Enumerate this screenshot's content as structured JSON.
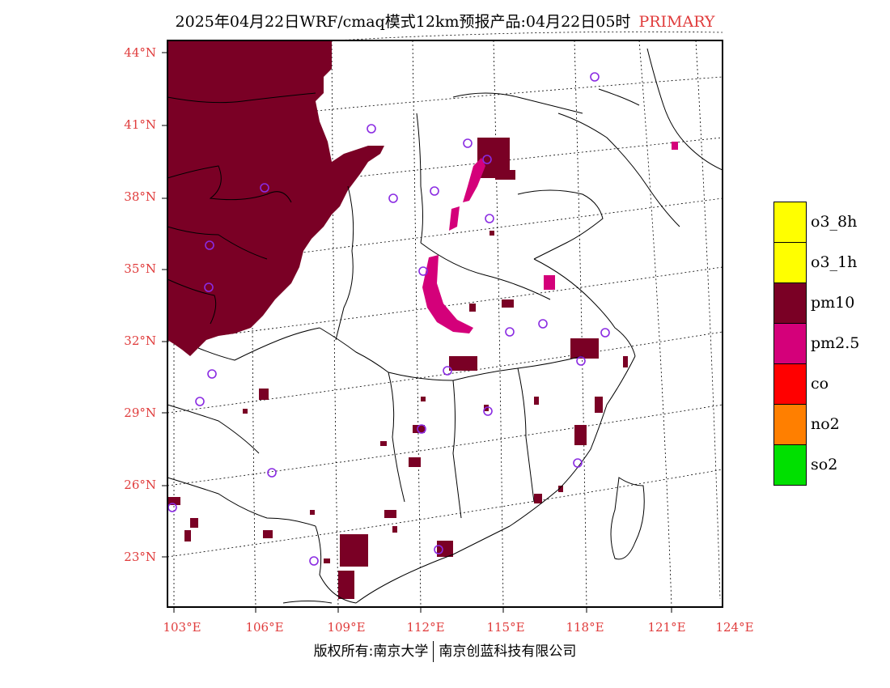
{
  "title": {
    "main": "2025年04月22日WRF/cmaq模式12km预报产品:04月22日05时",
    "tag": "PRIMARY"
  },
  "axes": {
    "lat_labels": [
      "44°N",
      "41°N",
      "38°N",
      "35°N",
      "32°N",
      "29°N",
      "26°N",
      "23°N"
    ],
    "lon_labels": [
      "103°E",
      "106°E",
      "109°E",
      "112°E",
      "115°E",
      "118°E",
      "121°E",
      "124°E"
    ]
  },
  "legend": [
    {
      "label": "o3_8h",
      "color": "#ffff00"
    },
    {
      "label": "o3_1h",
      "color": "#ffff00"
    },
    {
      "label": "pm10",
      "color": "#7a0025"
    },
    {
      "label": "pm2.5",
      "color": "#d4007a"
    },
    {
      "label": "co",
      "color": "#ff0000"
    },
    {
      "label": "no2",
      "color": "#ff7f00"
    },
    {
      "label": "so2",
      "color": "#00e000"
    }
  ],
  "copyright": {
    "left": "版权所有:南京大学",
    "right": "南京创蓝科技有限公司"
  },
  "colors": {
    "pm10": "#7a0025",
    "pm25": "#d4007a",
    "city_marker": "#8a2be2",
    "axis_label": "#e03c3c"
  }
}
